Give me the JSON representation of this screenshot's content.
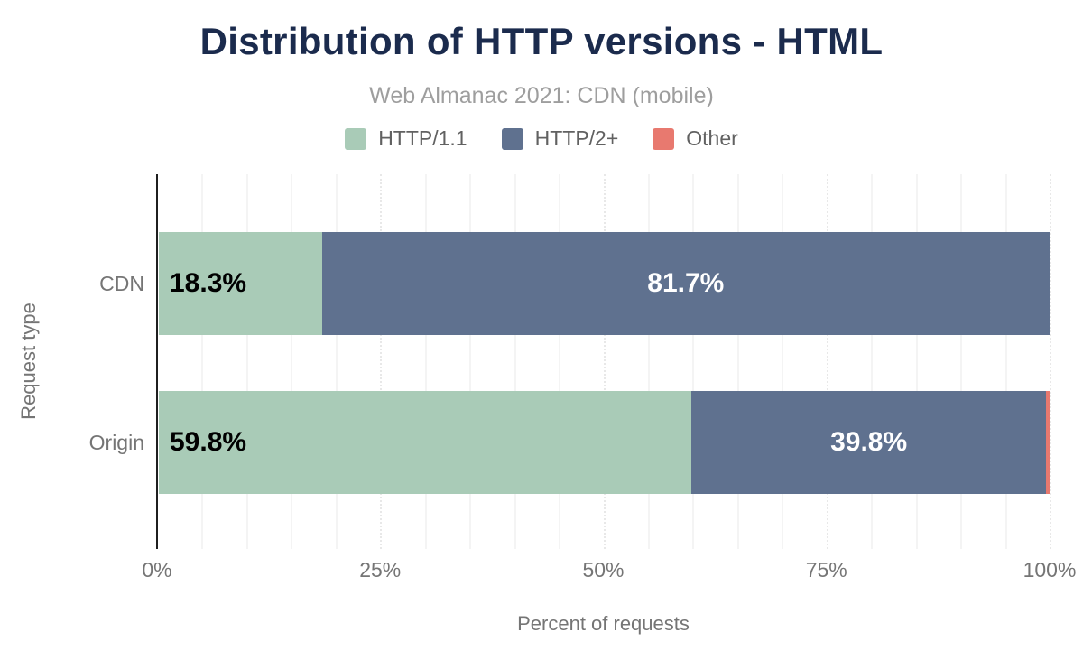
{
  "title": "Distribution of HTTP versions - HTML",
  "subtitle": "Web Almanac 2021: CDN (mobile)",
  "legend": [
    {
      "label": "HTTP/1.1",
      "color": "#a9cbb7"
    },
    {
      "label": "HTTP/2+",
      "color": "#5f718f"
    },
    {
      "label": "Other",
      "color": "#e8796f"
    }
  ],
  "chart_data": {
    "type": "bar",
    "orientation": "horizontal",
    "stacked": true,
    "title": "Distribution of HTTP versions - HTML",
    "subtitle": "Web Almanac 2021: CDN (mobile)",
    "categories": [
      "CDN",
      "Origin"
    ],
    "series": [
      {
        "name": "HTTP/1.1",
        "color": "#a9cbb7",
        "values": [
          18.3,
          59.8
        ]
      },
      {
        "name": "HTTP/2+",
        "color": "#5f718f",
        "values": [
          81.7,
          39.8
        ]
      },
      {
        "name": "Other",
        "color": "#e8796f",
        "values": [
          0.0,
          0.4
        ]
      }
    ],
    "value_labels": [
      {
        "category": "CDN",
        "series": "HTTP/1.1",
        "text": "18.3%",
        "color": "#000000",
        "position": "left"
      },
      {
        "category": "CDN",
        "series": "HTTP/2+",
        "text": "81.7%",
        "color": "#ffffff",
        "position": "center"
      },
      {
        "category": "Origin",
        "series": "HTTP/1.1",
        "text": "59.8%",
        "color": "#000000",
        "position": "left"
      },
      {
        "category": "Origin",
        "series": "HTTP/2+",
        "text": "39.8%",
        "color": "#ffffff",
        "position": "center"
      }
    ],
    "xlabel": "Percent of requests",
    "ylabel": "Request type",
    "xlim": [
      0,
      100
    ],
    "xticks": [
      {
        "value": 0,
        "label": "0%"
      },
      {
        "value": 25,
        "label": "25%"
      },
      {
        "value": 50,
        "label": "50%"
      },
      {
        "value": 75,
        "label": "75%"
      },
      {
        "value": 100,
        "label": "100%"
      }
    ],
    "grid": {
      "minor_step": 5,
      "major_step": 25,
      "visible": true
    },
    "legend_position": "top",
    "colors": {
      "title": "#1b2b4d",
      "subtitle": "#9e9e9e",
      "axis_text": "#757575",
      "legend_text": "#616161",
      "axis_line": "#1f1f1f"
    }
  }
}
